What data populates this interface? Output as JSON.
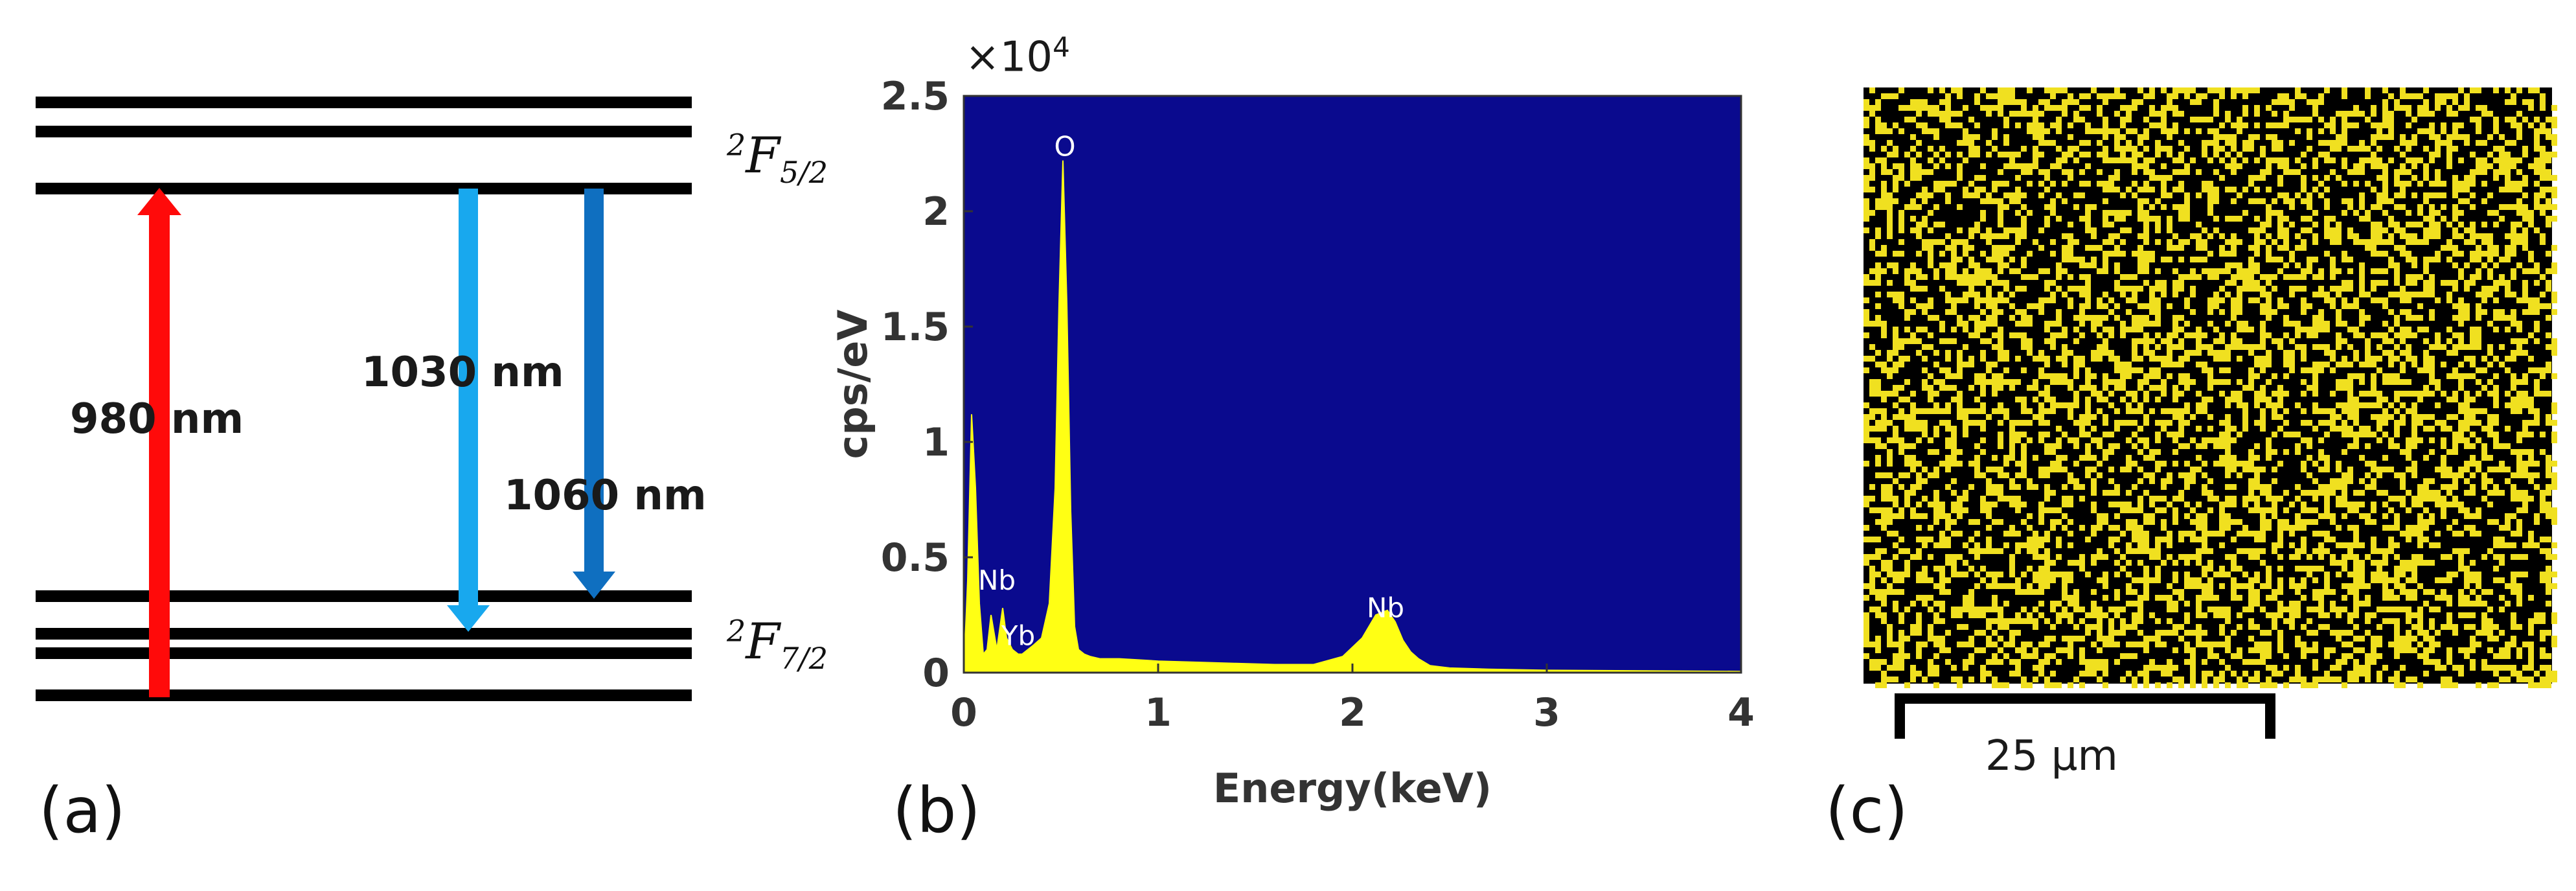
{
  "panel_a": {
    "panel_label": "(a)",
    "upper_level": {
      "superscript": "2",
      "symbol": "F",
      "subscript": "5/2"
    },
    "lower_level": {
      "superscript": "2",
      "symbol": "F",
      "subscript": "7/2"
    },
    "arrows": [
      {
        "label": "980 nm",
        "color": "#ff0a0a",
        "direction": "up"
      },
      {
        "label": "1030 nm",
        "color": "#18a8ee",
        "direction": "down"
      },
      {
        "label": "1060 nm",
        "color": "#0f6fc0",
        "direction": "down"
      }
    ]
  },
  "panel_b": {
    "panel_label": "(b)",
    "multiplier_base": "×10",
    "multiplier_exp": "4",
    "plot_bg": "#0a0a8e",
    "fill_color": "#ffff14",
    "peak_labels": [
      "O",
      "Nb",
      "Yb",
      "Nb"
    ]
  },
  "panel_c": {
    "panel_label": "(c)",
    "scale_bar_label": "25 μm",
    "map_bg": "#000000",
    "dot_color": "#f0e020"
  },
  "chart_data": {
    "type": "area",
    "xlabel": "Energy(keV)",
    "ylabel": "cps/eV",
    "xlim": [
      0,
      4
    ],
    "ylim": [
      0,
      2.5
    ],
    "y_scale_multiplier": 10000,
    "x_ticks": [
      "0",
      "1",
      "2",
      "3",
      "4"
    ],
    "y_ticks": [
      "0",
      "0.5",
      "1",
      "1.5",
      "2",
      "2.5"
    ],
    "grid": false,
    "x": [
      0.0,
      0.02,
      0.04,
      0.06,
      0.08,
      0.1,
      0.12,
      0.14,
      0.17,
      0.2,
      0.22,
      0.25,
      0.28,
      0.3,
      0.33,
      0.36,
      0.4,
      0.44,
      0.47,
      0.49,
      0.51,
      0.53,
      0.55,
      0.57,
      0.59,
      0.62,
      0.65,
      0.7,
      0.8,
      0.9,
      1.0,
      1.2,
      1.4,
      1.6,
      1.8,
      1.95,
      2.05,
      2.12,
      2.18,
      2.22,
      2.26,
      2.3,
      2.34,
      2.4,
      2.5,
      2.7,
      3.0,
      3.5,
      4.0
    ],
    "y": [
      0.0,
      0.4,
      1.12,
      0.8,
      0.3,
      0.08,
      0.1,
      0.25,
      0.1,
      0.28,
      0.15,
      0.1,
      0.08,
      0.08,
      0.1,
      0.12,
      0.15,
      0.3,
      0.8,
      1.6,
      2.22,
      1.6,
      0.7,
      0.2,
      0.1,
      0.08,
      0.07,
      0.06,
      0.06,
      0.055,
      0.05,
      0.045,
      0.04,
      0.035,
      0.035,
      0.07,
      0.15,
      0.25,
      0.27,
      0.22,
      0.14,
      0.09,
      0.06,
      0.03,
      0.02,
      0.015,
      0.01,
      0.008,
      0.005
    ],
    "annotations": [
      {
        "text": "O",
        "x": 0.52,
        "y": 2.24
      },
      {
        "text": "Nb",
        "x": 0.17,
        "y": 0.36
      },
      {
        "text": "Yb",
        "x": 0.28,
        "y": 0.12
      },
      {
        "text": "Nb",
        "x": 2.17,
        "y": 0.24
      }
    ]
  }
}
